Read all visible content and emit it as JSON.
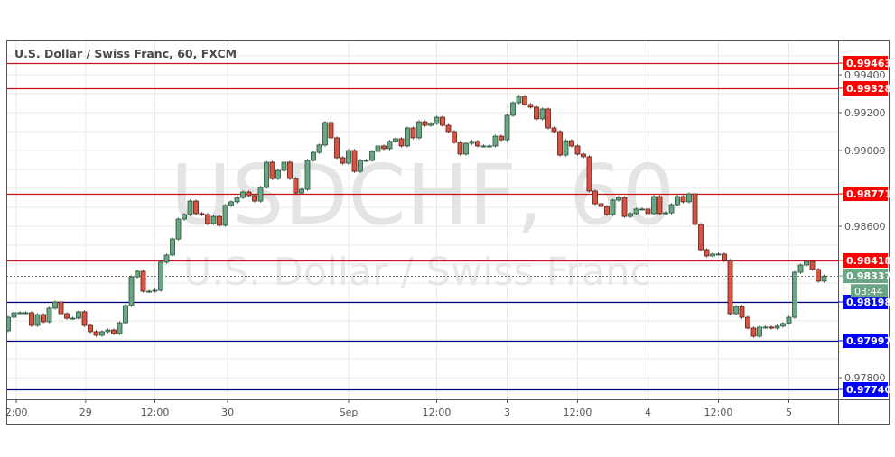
{
  "header": {
    "title": "U.S. Dollar / Swiss Franc, 60, FXCM"
  },
  "watermark": {
    "symbol": "USDCHF, 60",
    "name": "U.S. Dollar / Swiss Franc"
  },
  "colors": {
    "up": "#6ba583",
    "down": "#d75442",
    "up_border": "#225437",
    "down_border": "#5b1a13",
    "resistance": "#ff0000",
    "support": "#0000ff",
    "current": "#6ba583"
  },
  "chart_data": {
    "type": "candlestick",
    "title": "U.S. Dollar / Swiss Franc, 60, FXCM",
    "interval_minutes": 60,
    "ylim": [
      0.977,
      0.9959
    ],
    "grid": true,
    "y_ticks": [
      "0.99400",
      "0.99200",
      "0.99000",
      "0.98600",
      "0.97800"
    ],
    "y_tick_values": [
      0.994,
      0.992,
      0.99,
      0.986,
      0.978
    ],
    "x_ticks": [
      {
        "label": "2:00",
        "at_bar": 1.4
      },
      {
        "label": "29",
        "at_bar": 13.2
      },
      {
        "label": "12:00",
        "at_bar": 25
      },
      {
        "label": "30",
        "at_bar": 37.4
      },
      {
        "label": "Sep",
        "at_bar": 58
      },
      {
        "label": "12:00",
        "at_bar": 73
      },
      {
        "label": "3",
        "at_bar": 85
      },
      {
        "label": "12:00",
        "at_bar": 97
      },
      {
        "label": "4",
        "at_bar": 109
      },
      {
        "label": "12:00",
        "at_bar": 121
      },
      {
        "label": "5",
        "at_bar": 133
      }
    ],
    "first_open": 0.98048,
    "closes": [
      0.98119,
      0.98143,
      0.98143,
      0.98143,
      0.98076,
      0.98133,
      0.98095,
      0.98167,
      0.982,
      0.98138,
      0.98114,
      0.98114,
      0.98148,
      0.98076,
      0.98043,
      0.98024,
      0.98043,
      0.98052,
      0.98033,
      0.9809,
      0.98181,
      0.98333,
      0.98362,
      0.98257,
      0.98257,
      0.98262,
      0.9841,
      0.98448,
      0.98533,
      0.98638,
      0.98662,
      0.98733,
      0.98667,
      0.98662,
      0.98614,
      0.98652,
      0.98605,
      0.9871,
      0.98729,
      0.98752,
      0.98781,
      0.98762,
      0.98733,
      0.98805,
      0.98938,
      0.98852,
      0.98895,
      0.98938,
      0.98852,
      0.98776,
      0.98795,
      0.98948,
      0.9899,
      0.99029,
      0.99148,
      0.99067,
      0.98962,
      0.98933,
      0.99,
      0.9889,
      0.98948,
      0.98948,
      0.98995,
      0.99024,
      0.9901,
      0.99048,
      0.99062,
      0.99024,
      0.99119,
      0.99067,
      0.99152,
      0.99133,
      0.99143,
      0.99176,
      0.99133,
      0.991,
      0.99043,
      0.98981,
      0.99038,
      0.99048,
      0.99024,
      0.99024,
      0.99024,
      0.99076,
      0.99057,
      0.99186,
      0.99252,
      0.99286,
      0.99243,
      0.99229,
      0.99167,
      0.99219,
      0.99119,
      0.991,
      0.98976,
      0.99052,
      0.99024,
      0.98981,
      0.98967,
      0.98786,
      0.98719,
      0.98705,
      0.98662,
      0.98738,
      0.98752,
      0.98652,
      0.98667,
      0.98691,
      0.98691,
      0.98667,
      0.98757,
      0.98667,
      0.98671,
      0.98714,
      0.98757,
      0.98729,
      0.98771,
      0.9861,
      0.98476,
      0.98443,
      0.98453,
      0.98453,
      0.98419,
      0.98138,
      0.98176,
      0.98119,
      0.98062,
      0.98019,
      0.98067,
      0.98067,
      0.98062,
      0.98072,
      0.98086,
      0.98119,
      0.98357,
      0.98395,
      0.98414,
      0.98372,
      0.9831,
      0.98337
    ],
    "levels": [
      {
        "price": 0.99463,
        "label": "0.99463",
        "kind": "resistance"
      },
      {
        "price": 0.99328,
        "label": "0.99328",
        "kind": "resistance"
      },
      {
        "price": 0.98771,
        "label": "0.98771",
        "kind": "resistance"
      },
      {
        "price": 0.98418,
        "label": "0.98418",
        "kind": "resistance"
      },
      {
        "price": 0.98198,
        "label": "0.98198",
        "kind": "support"
      },
      {
        "price": 0.97997,
        "label": "0.97997",
        "kind": "support"
      },
      {
        "price": 0.9774,
        "label": "0.97740",
        "kind": "support"
      }
    ],
    "current_price": {
      "price": 0.98337,
      "label": "0.98337",
      "countdown": "03:44"
    }
  }
}
